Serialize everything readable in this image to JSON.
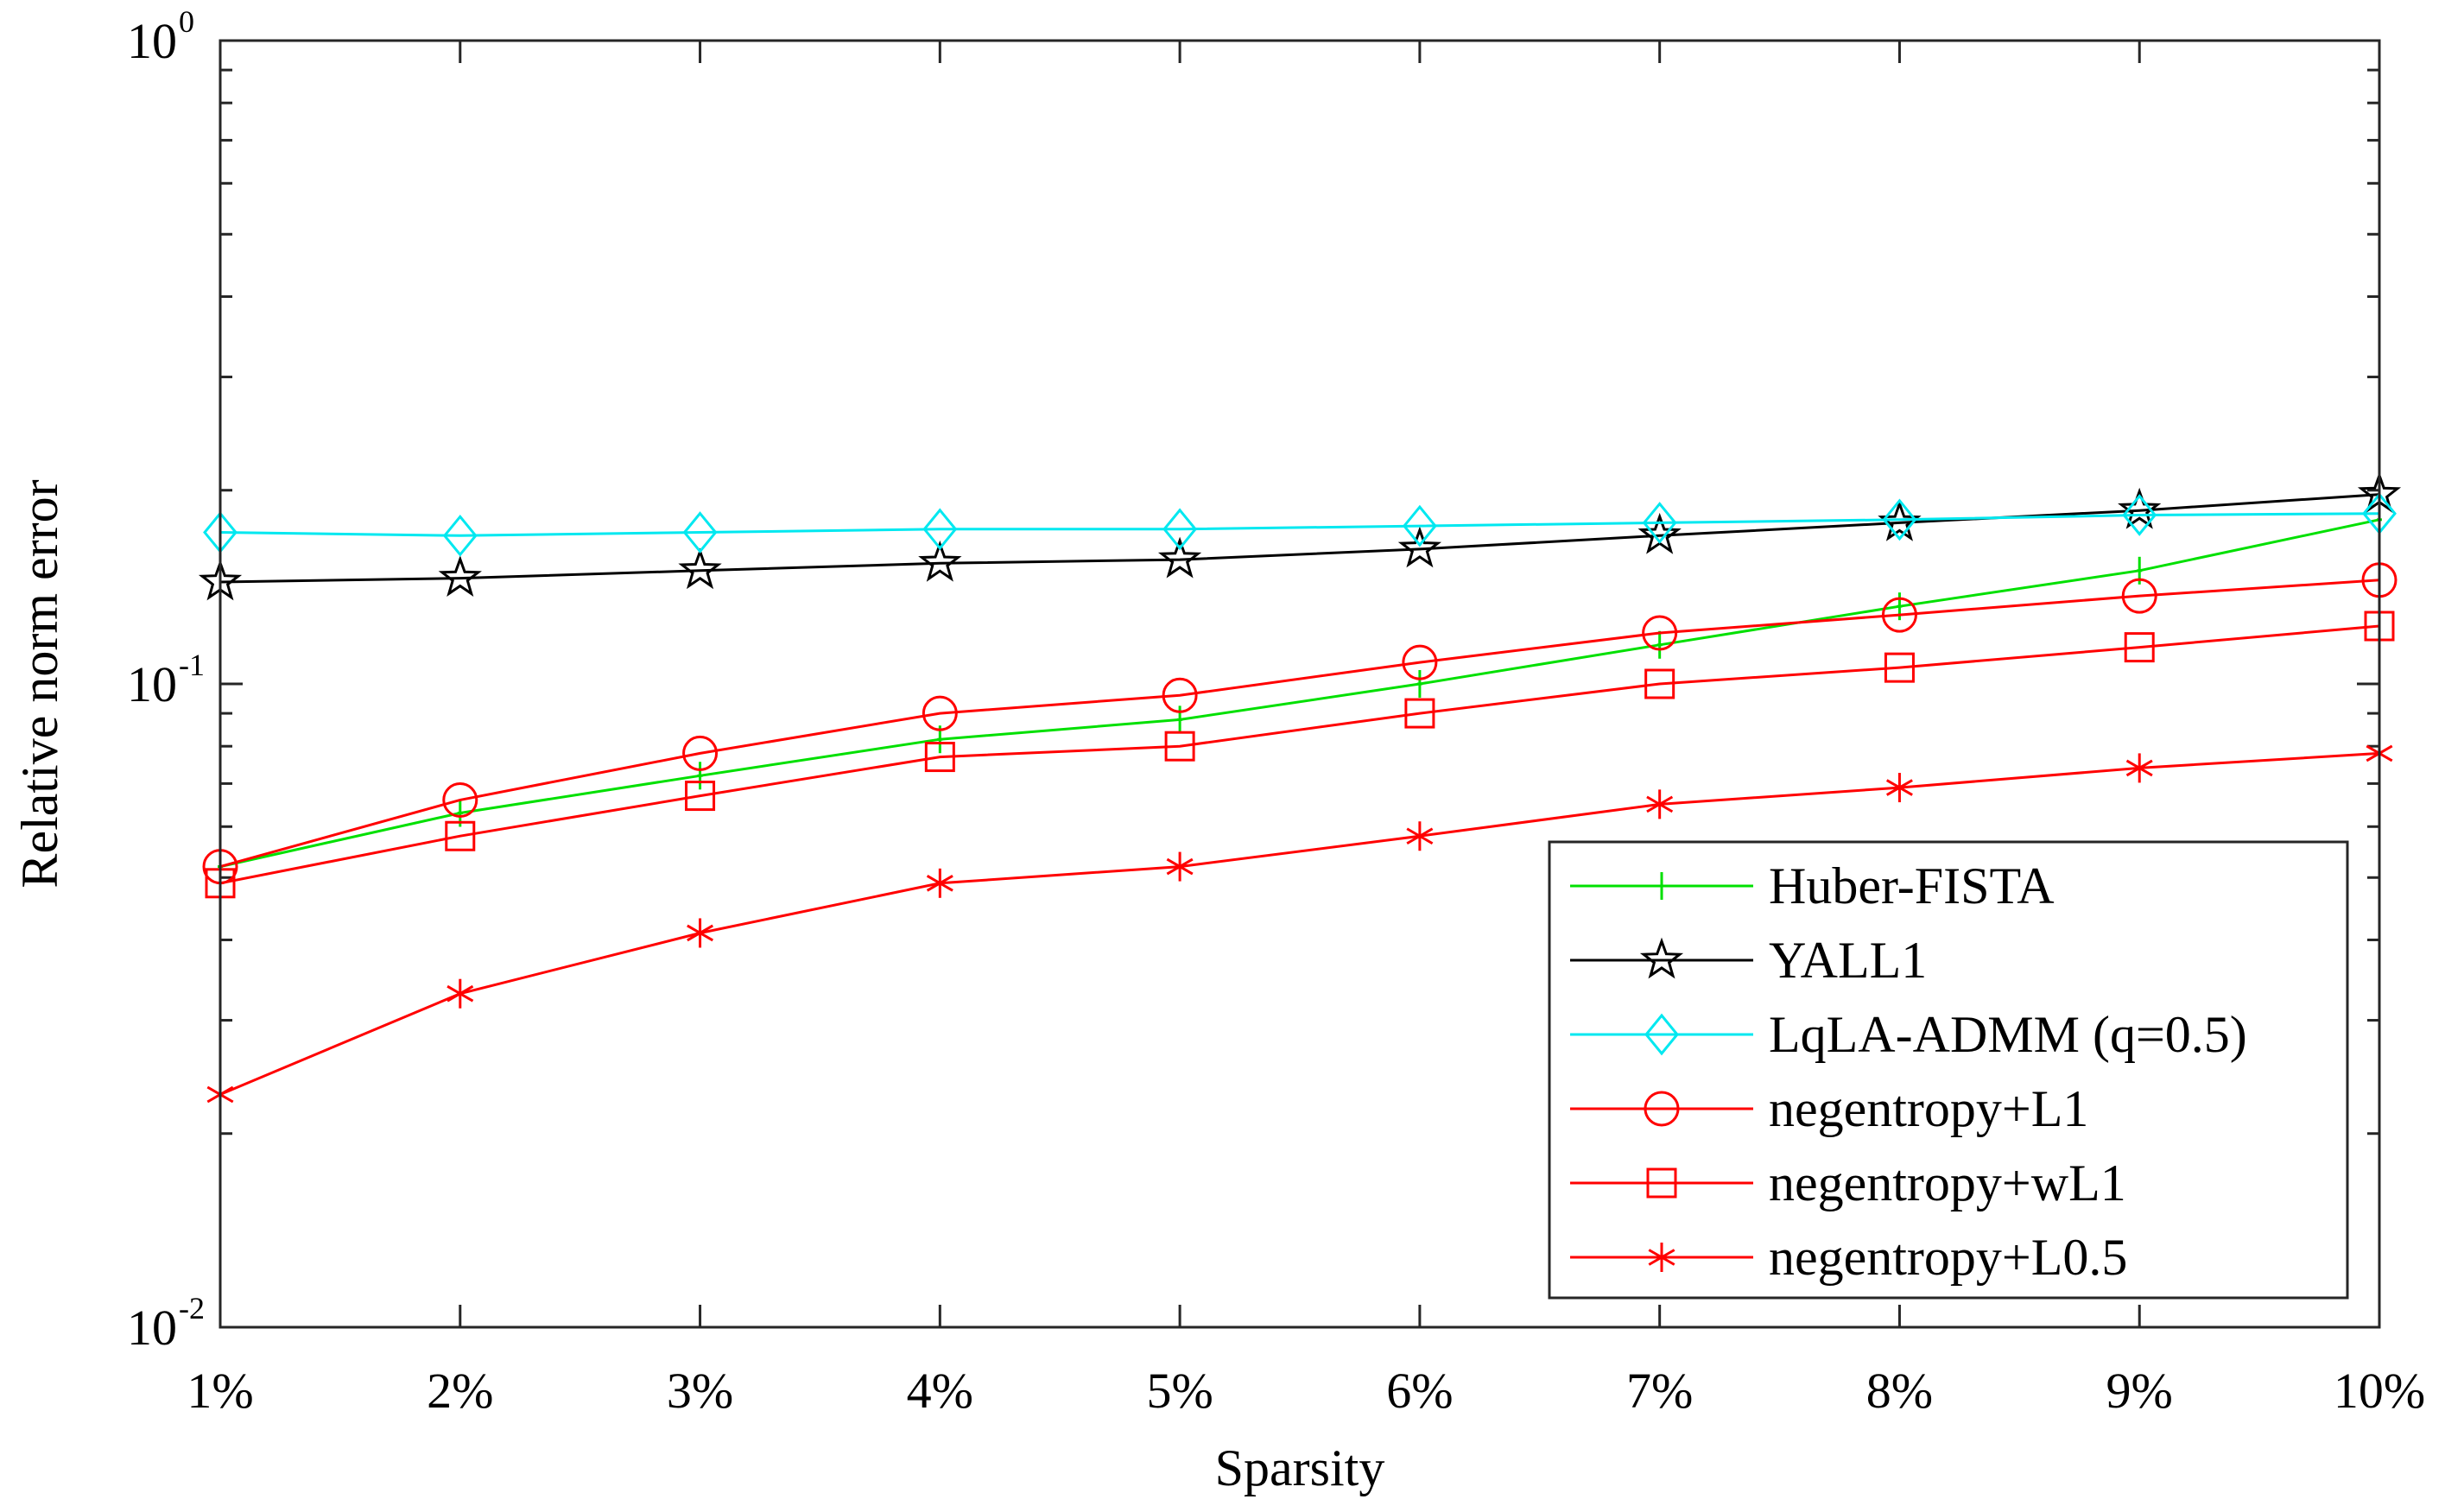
{
  "chart_data": {
    "type": "line",
    "title": "",
    "xlabel": "Sparsity",
    "ylabel": "Relative norm error",
    "yscale": "log",
    "ylim": [
      0.01,
      1
    ],
    "categories": [
      "1%",
      "2%",
      "3%",
      "4%",
      "5%",
      "6%",
      "7%",
      "8%",
      "9%",
      "10%"
    ],
    "ytick_labels": [
      {
        "base": "10",
        "exp": "-2"
      },
      {
        "base": "10",
        "exp": "-1"
      },
      {
        "base": "10",
        "exp": "0"
      }
    ],
    "grid": false,
    "legend_position": "bottom-right",
    "series": [
      {
        "name": "Huber-FISTA",
        "color": "#00e000",
        "marker": "plus",
        "values": [
          0.052,
          0.063,
          0.072,
          0.082,
          0.088,
          0.1,
          0.115,
          0.132,
          0.15,
          0.18
        ]
      },
      {
        "name": "YALL1",
        "color": "#000000",
        "marker": "star",
        "values": [
          0.144,
          0.146,
          0.15,
          0.154,
          0.156,
          0.162,
          0.17,
          0.178,
          0.186,
          0.197
        ]
      },
      {
        "name": "LqLA-ADMM (q=0.5)",
        "color": "#00e8f0",
        "marker": "diamond",
        "values": [
          0.172,
          0.17,
          0.172,
          0.174,
          0.174,
          0.176,
          0.178,
          0.18,
          0.183,
          0.184
        ]
      },
      {
        "name": "negentropy+L1",
        "color": "#ff0000",
        "marker": "circle",
        "values": [
          0.052,
          0.066,
          0.078,
          0.09,
          0.096,
          0.108,
          0.12,
          0.128,
          0.137,
          0.145
        ]
      },
      {
        "name": "negentropy+wL1",
        "color": "#ff0000",
        "marker": "square",
        "values": [
          0.049,
          0.058,
          0.067,
          0.077,
          0.08,
          0.09,
          0.1,
          0.106,
          0.114,
          0.123
        ]
      },
      {
        "name": "negentropy+L0.5",
        "color": "#ff0000",
        "marker": "asterisk",
        "values": [
          0.023,
          0.033,
          0.041,
          0.049,
          0.052,
          0.058,
          0.065,
          0.069,
          0.074,
          0.078
        ]
      }
    ]
  }
}
